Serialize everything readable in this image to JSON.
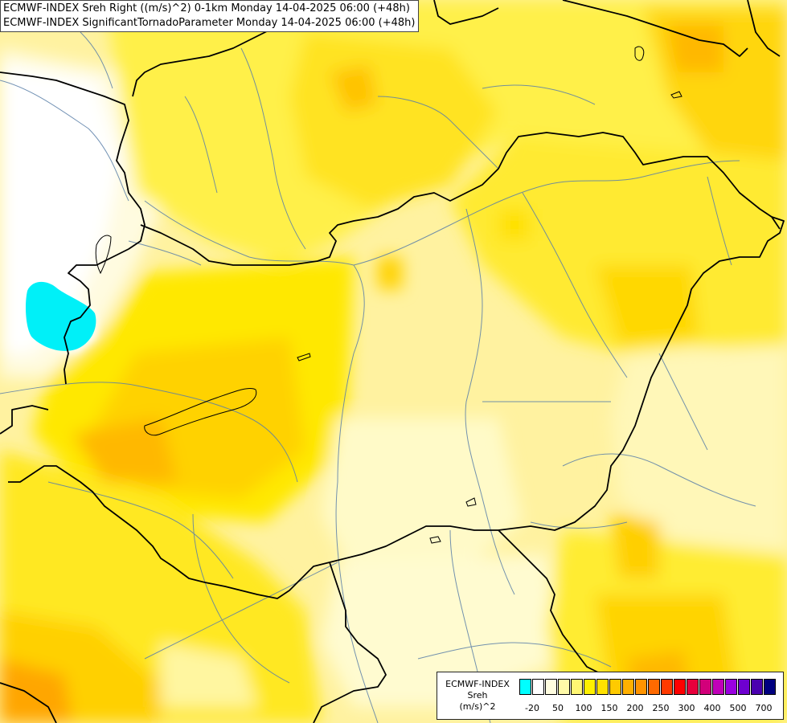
{
  "header": {
    "line1": "ECMWF-INDEX Sreh Right ((m/s)^2) 0-1km Monday 14-04-2025 06:00 (+48h)",
    "line2": "ECMWF-INDEX SignificantTornadoParameter Monday 14-04-2025 06:00 (+48h)"
  },
  "legend": {
    "title1": "ECMWF-INDEX",
    "title2": "Sreh",
    "title3": "(m/s)^2",
    "colors": [
      "#00ffff",
      "#ffffff",
      "#fffde0",
      "#fffaa8",
      "#fff673",
      "#fff000",
      "#ffe100",
      "#ffca00",
      "#ffb000",
      "#ff9400",
      "#ff6a00",
      "#ff3a00",
      "#ff0000",
      "#e8003c",
      "#d2007a",
      "#c000b8",
      "#9a00e0",
      "#6e00d0",
      "#4a00b0",
      "#000080"
    ],
    "ticks": [
      "-20",
      "50",
      "100",
      "150",
      "200",
      "250",
      "300",
      "400",
      "500",
      "700"
    ]
  }
}
